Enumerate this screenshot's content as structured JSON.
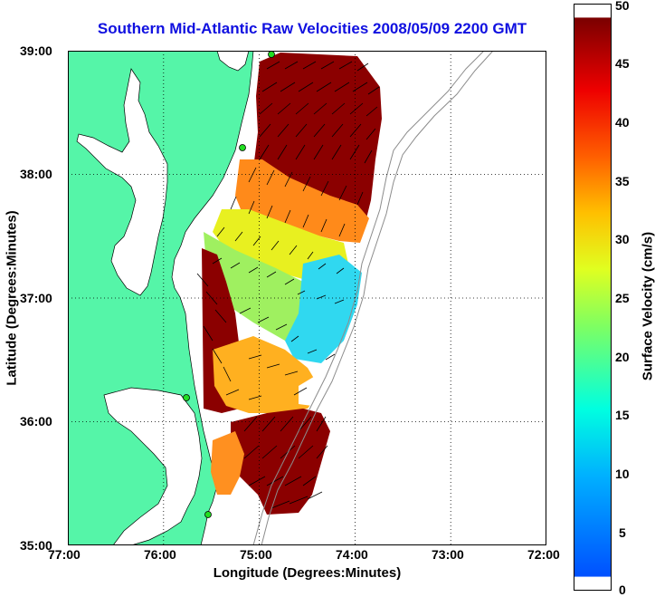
{
  "title": "Southern Mid-Atlantic Raw Velocities 2008/05/09 2200 GMT",
  "xlabel": "Longitude (Degrees:Minutes)",
  "ylabel": "Latitude (Degrees:Minutes)",
  "colorbar_label": "Surface Velocity (cm/s)",
  "x_ticks": [
    "77:00",
    "76:00",
    "75:00",
    "74:00",
    "73:00",
    "72:00"
  ],
  "y_ticks": [
    "39:00",
    "38:00",
    "37:00",
    "36:00",
    "35:00"
  ],
  "colorbar_ticks": [
    "50",
    "45",
    "40",
    "35",
    "30",
    "25",
    "20",
    "15",
    "10",
    "5",
    "0"
  ],
  "colors": {
    "title": "#1010e0",
    "land": "#55f5a8",
    "colormap": [
      "#0000ff",
      "#00ffff",
      "#ffff00",
      "#ff8000",
      "#ff0000",
      "#800000"
    ],
    "station": "#22dd22"
  },
  "chart_data": {
    "type": "heatmap",
    "title": "Southern Mid-Atlantic Raw Velocities 2008/05/09 2200 GMT",
    "xlabel": "Longitude (Degrees:Minutes)",
    "ylabel": "Latitude (Degrees:Minutes)",
    "xlim": [
      -77,
      -72
    ],
    "ylim": [
      35,
      39
    ],
    "colorbar": {
      "label": "Surface Velocity (cm/s)",
      "range": [
        0,
        50
      ],
      "colormap": "jet"
    },
    "grid": true
  }
}
